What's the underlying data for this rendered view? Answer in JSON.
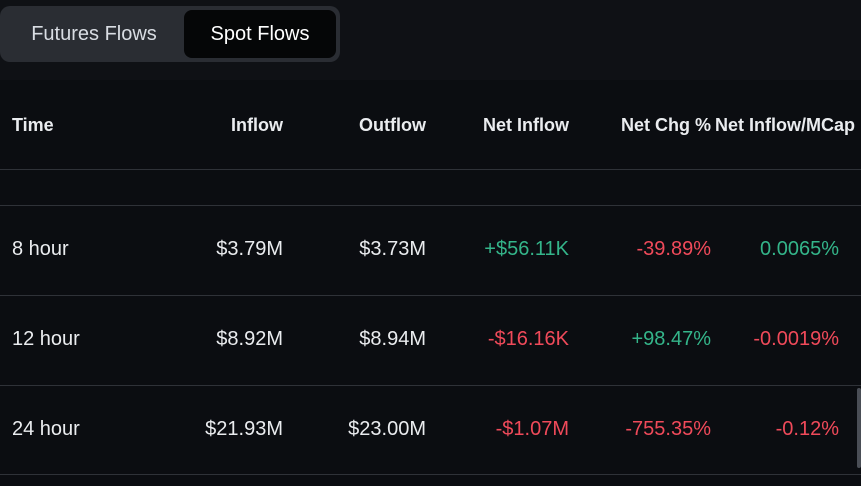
{
  "tabs": [
    {
      "label": "Futures Flows",
      "active": false
    },
    {
      "label": "Spot Flows",
      "active": true
    }
  ],
  "table": {
    "headers": {
      "time": "Time",
      "inflow": "Inflow",
      "outflow": "Outflow",
      "net_inflow": "Net Inflow",
      "net_chg": "Net Chg %",
      "net_inflow_mcap": "Net Inflow/MCap"
    },
    "rows": [
      {
        "time": "8 hour",
        "inflow": "$3.79M",
        "outflow": "$3.73M",
        "net_inflow": "+$56.11K",
        "net_chg": "-39.89%",
        "net_inflow_mcap": "0.0065%"
      },
      {
        "time": "12 hour",
        "inflow": "$8.92M",
        "outflow": "$8.94M",
        "net_inflow": "-$16.16K",
        "net_chg": "+98.47%",
        "net_inflow_mcap": "-0.0019%"
      },
      {
        "time": "24 hour",
        "inflow": "$21.93M",
        "outflow": "$23.00M",
        "net_inflow": "-$1.07M",
        "net_chg": "-755.35%",
        "net_inflow_mcap": "-0.12%"
      }
    ]
  },
  "colors": {
    "positive": "#34b58a",
    "negative": "#f04a5a",
    "background": "#0b0d11"
  }
}
